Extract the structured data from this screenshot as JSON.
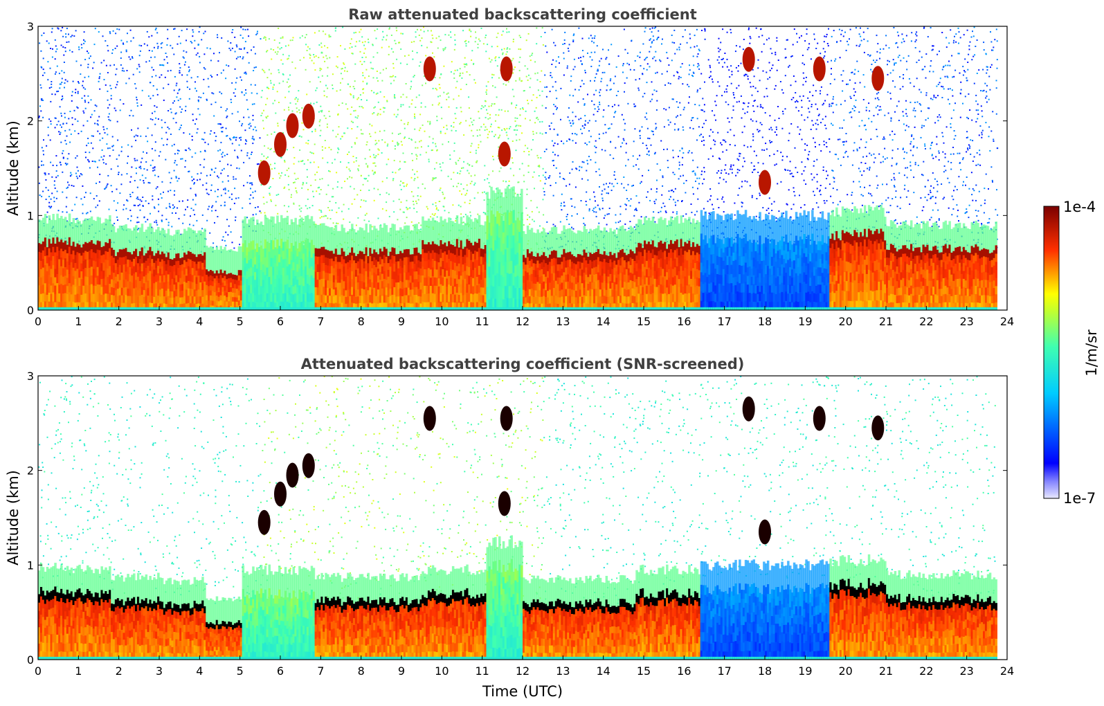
{
  "chart_data": [
    {
      "type": "heatmap",
      "title": "Raw attenuated backscattering coefficient",
      "xlabel": "",
      "ylabel": "Altitude (km)",
      "xlim": [
        0,
        24
      ],
      "ylim": [
        0,
        3
      ],
      "x_ticks": [
        "0",
        "1",
        "2",
        "3",
        "4",
        "5",
        "6",
        "7",
        "8",
        "9",
        "10",
        "11",
        "12",
        "13",
        "14",
        "15",
        "16",
        "17",
        "18",
        "19",
        "20",
        "21",
        "22",
        "23",
        "24"
      ],
      "y_ticks": [
        "0",
        "1",
        "2",
        "3"
      ],
      "data_end_time": 23.75,
      "segments": [
        {
          "t0": 0.0,
          "t1": 0.9,
          "top": 0.72,
          "level": "high"
        },
        {
          "t0": 0.9,
          "t1": 1.8,
          "top": 0.7,
          "level": "high"
        },
        {
          "t0": 1.8,
          "t1": 3.0,
          "top": 0.62,
          "level": "high"
        },
        {
          "t0": 3.0,
          "t1": 4.1,
          "top": 0.58,
          "level": "high"
        },
        {
          "t0": 4.1,
          "t1": 5.0,
          "top": 0.4,
          "level": "high"
        },
        {
          "t0": 5.0,
          "t1": 6.8,
          "top": 0.7,
          "level": "low"
        },
        {
          "t0": 6.8,
          "t1": 9.5,
          "top": 0.62,
          "level": "high"
        },
        {
          "t0": 9.5,
          "t1": 11.1,
          "top": 0.7,
          "level": "high"
        },
        {
          "t0": 11.1,
          "t1": 12.0,
          "top": 1.0,
          "level": "low"
        },
        {
          "t0": 12.0,
          "t1": 14.8,
          "top": 0.6,
          "level": "high"
        },
        {
          "t0": 14.8,
          "t1": 16.4,
          "top": 0.7,
          "level": "high"
        },
        {
          "t0": 16.4,
          "t1": 19.6,
          "top": 0.75,
          "level": "very-low"
        },
        {
          "t0": 19.6,
          "t1": 21.0,
          "top": 0.8,
          "level": "high"
        },
        {
          "t0": 21.0,
          "t1": 23.75,
          "top": 0.65,
          "level": "high"
        }
      ],
      "cloud_features": [
        {
          "t": 5.6,
          "alt": 1.45
        },
        {
          "t": 6.0,
          "alt": 1.75
        },
        {
          "t": 6.3,
          "alt": 1.95
        },
        {
          "t": 6.7,
          "alt": 2.05
        },
        {
          "t": 9.7,
          "alt": 2.55
        },
        {
          "t": 11.6,
          "alt": 2.55
        },
        {
          "t": 11.55,
          "alt": 1.65
        },
        {
          "t": 17.6,
          "alt": 2.65
        },
        {
          "t": 18.0,
          "alt": 1.35
        },
        {
          "t": 19.35,
          "alt": 2.55
        },
        {
          "t": 20.8,
          "alt": 2.45
        }
      ]
    },
    {
      "type": "heatmap",
      "title": "Attenuated backscattering coefficient (SNR-screened)",
      "xlabel": "Time (UTC)",
      "ylabel": "Altitude (km)",
      "xlim": [
        0,
        24
      ],
      "ylim": [
        0,
        3
      ],
      "x_ticks": [
        "0",
        "1",
        "2",
        "3",
        "4",
        "5",
        "6",
        "7",
        "8",
        "9",
        "10",
        "11",
        "12",
        "13",
        "14",
        "15",
        "16",
        "17",
        "18",
        "19",
        "20",
        "21",
        "22",
        "23",
        "24"
      ],
      "y_ticks": [
        "0",
        "1",
        "2",
        "3"
      ],
      "data_end_time": 23.75,
      "screened": true
    }
  ],
  "colorbar": {
    "label": "1/m/sr",
    "max_label": "1e-4",
    "min_label": "1e-7",
    "scale": "log",
    "range": [
      1e-07,
      0.0001
    ],
    "colormap": "jet"
  }
}
